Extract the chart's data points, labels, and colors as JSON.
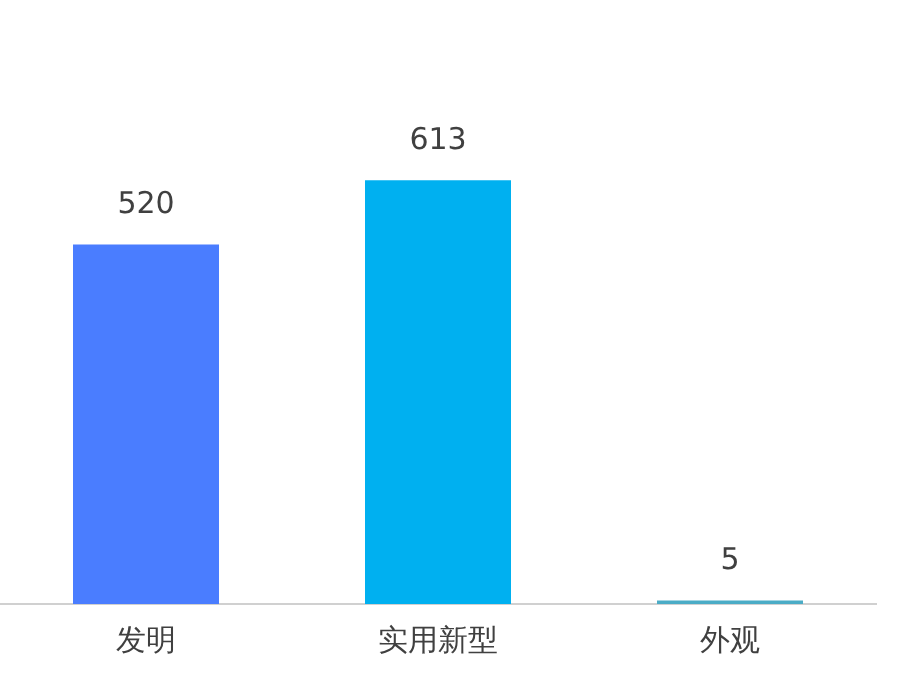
{
  "chart_data": {
    "type": "bar",
    "categories": [
      "发明",
      "实用新型",
      "外观"
    ],
    "values": [
      520,
      613,
      5
    ],
    "colors": [
      "#4a7dff",
      "#00b0f0",
      "#4bacc6"
    ],
    "data_labels": true,
    "legend": false
  }
}
